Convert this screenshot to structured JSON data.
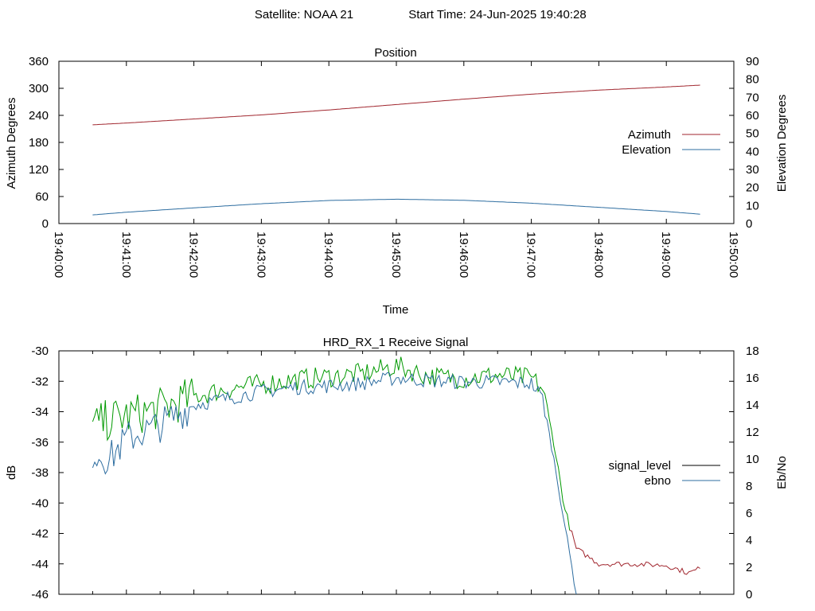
{
  "header": {
    "satellite": "Satellite: NOAA 21",
    "start_time": "Start Time: 24-Jun-2025 19:40:28"
  },
  "colors": {
    "azimuth": "#a0252d",
    "elevation": "#2d6da0",
    "signal_green": "#009900",
    "signal_red": "#a0252d",
    "ebno": "#2d6da0",
    "legend_signal": "#000000"
  },
  "chart_data": [
    {
      "type": "line",
      "title": "Position",
      "xlabel": "Time",
      "ylabel": "Azimuth Degrees",
      "y2label": "Elevation Degrees",
      "xlim": [
        "19:40:00",
        "19:50:00"
      ],
      "ylim": [
        0,
        360
      ],
      "y2lim": [
        0,
        90
      ],
      "x_ticks": [
        "19:40:00",
        "19:41:00",
        "19:42:00",
        "19:43:00",
        "19:44:00",
        "19:45:00",
        "19:46:00",
        "19:47:00",
        "19:48:00",
        "19:49:00",
        "19:50:00"
      ],
      "y_ticks": [
        "0",
        "60",
        "120",
        "180",
        "240",
        "300",
        "360"
      ],
      "y2_ticks": [
        "0",
        "10",
        "20",
        "30",
        "40",
        "50",
        "60",
        "70",
        "80",
        "90"
      ],
      "legend_position": "right",
      "series": [
        {
          "name": "Azimuth",
          "axis": "y",
          "x": [
            "19:40:30",
            "19:41:00",
            "19:42:00",
            "19:43:00",
            "19:44:00",
            "19:45:00",
            "19:46:00",
            "19:47:00",
            "19:48:00",
            "19:49:00",
            "19:49:30"
          ],
          "values": [
            219,
            223,
            232,
            241,
            252,
            264,
            276,
            287,
            296,
            303,
            307
          ]
        },
        {
          "name": "Elevation",
          "axis": "y2",
          "x": [
            "19:40:30",
            "19:41:00",
            "19:42:00",
            "19:43:00",
            "19:44:00",
            "19:45:00",
            "19:46:00",
            "19:47:00",
            "19:48:00",
            "19:49:00",
            "19:49:30"
          ],
          "values": [
            4.8,
            6.3,
            8.7,
            11.0,
            12.8,
            13.5,
            12.9,
            11.3,
            9.0,
            6.7,
            5.2
          ]
        }
      ]
    },
    {
      "type": "line",
      "title": "HRD_RX_1 Receive Signal",
      "xlabel": "",
      "ylabel": "dB",
      "y2label": "Eb/No",
      "xlim": [
        "19:40:00",
        "19:50:00"
      ],
      "ylim": [
        -46,
        -30
      ],
      "y2lim": [
        0,
        18
      ],
      "y_ticks": [
        "-30",
        "-32",
        "-34",
        "-36",
        "-38",
        "-40",
        "-42",
        "-44",
        "-46"
      ],
      "y2_ticks": [
        "0",
        "2",
        "4",
        "6",
        "8",
        "10",
        "12",
        "14",
        "16",
        "18"
      ],
      "legend_position": "right",
      "series": [
        {
          "name": "signal_level",
          "axis": "y",
          "x": [
            "19:40:30",
            "19:40:45",
            "19:41:00",
            "19:41:30",
            "19:42:00",
            "19:42:30",
            "19:43:00",
            "19:43:30",
            "19:44:00",
            "19:44:30",
            "19:45:00",
            "19:45:30",
            "19:46:00",
            "19:46:30",
            "19:47:00",
            "19:47:10",
            "19:47:20",
            "19:47:30",
            "19:47:40",
            "19:48:00",
            "19:48:30",
            "19:49:00",
            "19:49:20",
            "19:49:30"
          ],
          "values": [
            -35.0,
            -34.5,
            -34.3,
            -33.8,
            -33.0,
            -32.5,
            -32.2,
            -31.9,
            -31.7,
            -31.5,
            -31.0,
            -31.7,
            -31.8,
            -31.6,
            -31.8,
            -32.5,
            -36.0,
            -40.5,
            -43.0,
            -44.0,
            -44.0,
            -44.1,
            -44.6,
            -44.3
          ]
        },
        {
          "name": "ebno",
          "axis": "y2",
          "x": [
            "19:40:30",
            "19:40:45",
            "19:41:00",
            "19:41:30",
            "19:42:00",
            "19:42:30",
            "19:43:00",
            "19:43:30",
            "19:44:00",
            "19:44:30",
            "19:45:00",
            "19:45:30",
            "19:46:00",
            "19:46:30",
            "19:47:00",
            "19:47:10",
            "19:47:20",
            "19:47:30",
            "19:47:40"
          ],
          "values": [
            10.5,
            10.0,
            11.5,
            12.5,
            14.0,
            14.5,
            15.0,
            15.3,
            15.4,
            15.6,
            16.0,
            15.8,
            15.7,
            15.7,
            15.6,
            14.5,
            10.0,
            5.0,
            0.0
          ]
        }
      ]
    }
  ]
}
